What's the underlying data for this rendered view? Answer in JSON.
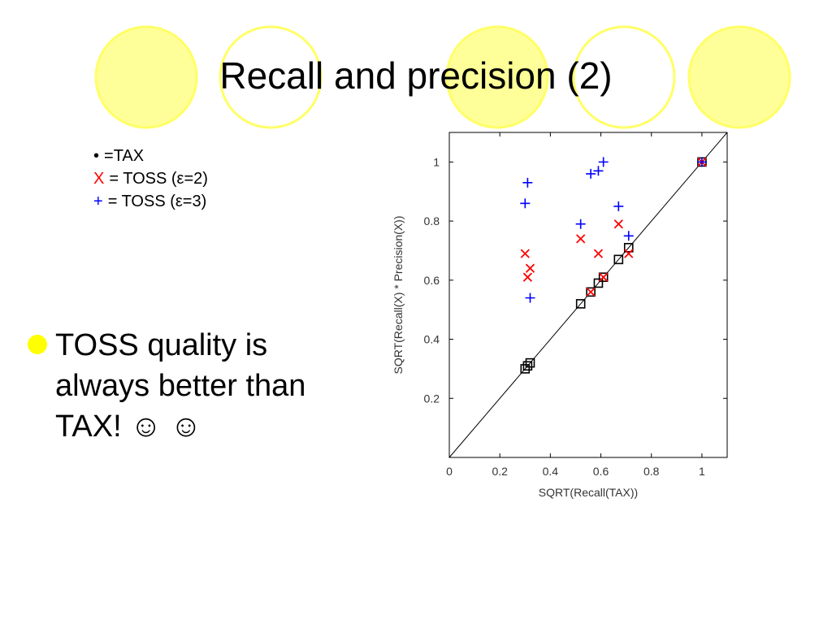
{
  "slide": {
    "title": "Recall and precision (2)",
    "decor_fill": "#ffff99",
    "decor_stroke": "#ffff66"
  },
  "legend": [
    {
      "symbol": "•",
      "color": "#000000",
      "text": "=TAX"
    },
    {
      "symbol": "X",
      "color": "#ff0000",
      "text": "= TOSS (ε=2)"
    },
    {
      "symbol": "+",
      "color": "#0000ff",
      "text": "= TOSS (ε=3)"
    }
  ],
  "bullet": {
    "line1": "TOSS quality is",
    "line2": "always better than",
    "line3": "TAX! ☺ ☺",
    "dot_color": "#ffff00"
  },
  "chart_data": {
    "type": "scatter",
    "xlabel": "SQRT(Recall(TAX))",
    "ylabel": "SQRT(Recall(X) * Precision(X))",
    "xlim": [
      0,
      1.1
    ],
    "ylim": [
      0,
      1.1
    ],
    "xticks": [
      0,
      0.2,
      0.4,
      0.6,
      0.8,
      1
    ],
    "yticks": [
      0.2,
      0.4,
      0.6,
      0.8,
      1
    ],
    "xtick_labels": [
      "0",
      "0.2",
      "0.4",
      "0.6",
      "0.8",
      "1"
    ],
    "ytick_labels": [
      "0.2",
      "0.4",
      "0.6",
      "0.8",
      "1"
    ],
    "diagonal": true,
    "grid": false,
    "series": [
      {
        "marker": "square",
        "color": "#000000",
        "points": [
          [
            0.3,
            0.3
          ],
          [
            0.31,
            0.31
          ],
          [
            0.32,
            0.32
          ],
          [
            0.52,
            0.52
          ],
          [
            0.56,
            0.56
          ],
          [
            0.59,
            0.59
          ],
          [
            0.61,
            0.61
          ],
          [
            0.67,
            0.67
          ],
          [
            0.71,
            0.71
          ],
          [
            1.0,
            1.0
          ]
        ]
      },
      {
        "marker": "x",
        "color": "#ff0000",
        "points": [
          [
            0.3,
            0.69
          ],
          [
            0.31,
            0.61
          ],
          [
            0.32,
            0.64
          ],
          [
            0.52,
            0.74
          ],
          [
            0.56,
            0.56
          ],
          [
            0.59,
            0.69
          ],
          [
            0.61,
            0.61
          ],
          [
            0.67,
            0.79
          ],
          [
            0.71,
            0.69
          ],
          [
            1.0,
            1.0
          ]
        ]
      },
      {
        "marker": "plus",
        "color": "#0000ff",
        "points": [
          [
            0.3,
            0.86
          ],
          [
            0.31,
            0.93
          ],
          [
            0.32,
            0.54
          ],
          [
            0.52,
            0.79
          ],
          [
            0.56,
            0.96
          ],
          [
            0.59,
            0.97
          ],
          [
            0.61,
            1.0
          ],
          [
            0.67,
            0.85
          ],
          [
            0.71,
            0.75
          ],
          [
            1.0,
            1.0
          ]
        ]
      }
    ]
  }
}
